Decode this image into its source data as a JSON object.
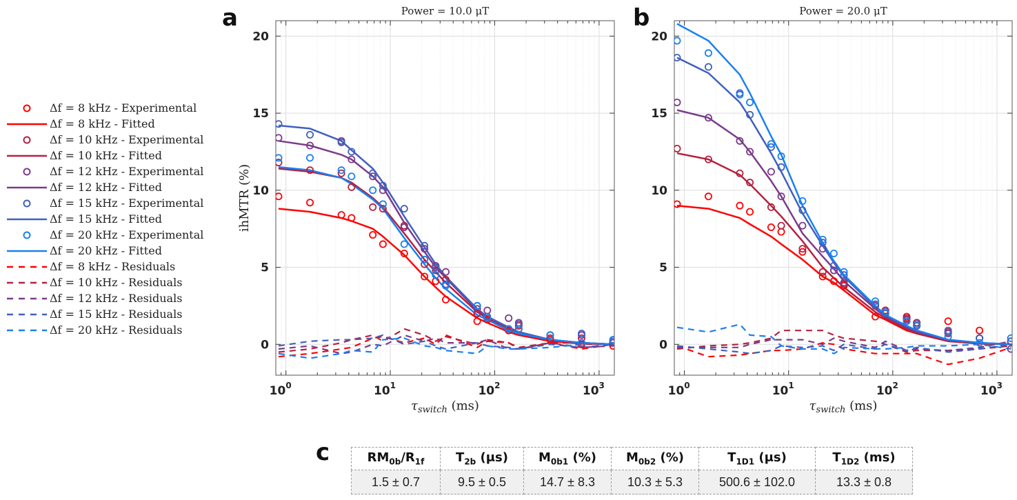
{
  "figure": {
    "panel_letters": {
      "a": "a",
      "b": "b",
      "c": "c"
    }
  },
  "legend": {
    "entries": [
      {
        "label": "Δf = 8 kHz - Experimental",
        "kind": "marker",
        "color": "#ff0000"
      },
      {
        "label": "Δf = 8 kHz - Fitted",
        "kind": "solid",
        "color": "#ff0000"
      },
      {
        "label": "Δf = 10 kHz - Experimental",
        "kind": "marker",
        "color": "#b5213f"
      },
      {
        "label": "Δf = 10 kHz - Fitted",
        "kind": "solid",
        "color": "#b5213f"
      },
      {
        "label": "Δf = 12 kHz - Experimental",
        "kind": "marker",
        "color": "#7b3b8a"
      },
      {
        "label": "Δf = 12 kHz - Fitted",
        "kind": "solid",
        "color": "#7b3b8a"
      },
      {
        "label": "Δf = 15 kHz - Experimental",
        "kind": "marker",
        "color": "#4060c0"
      },
      {
        "label": "Δf = 15 kHz - Fitted",
        "kind": "solid",
        "color": "#4060c0"
      },
      {
        "label": "Δf = 20 kHz - Experimental",
        "kind": "marker",
        "color": "#1a80f0"
      },
      {
        "label": "Δf = 20 kHz - Fitted",
        "kind": "solid",
        "color": "#1a80f0"
      },
      {
        "label": "Δf = 8 kHz - Residuals",
        "kind": "dashed",
        "color": "#ff0000"
      },
      {
        "label": "Δf = 10 kHz - Residuals",
        "kind": "dashed",
        "color": "#b5213f"
      },
      {
        "label": "Δf = 12 kHz - Residuals",
        "kind": "dashed",
        "color": "#7b3b8a"
      },
      {
        "label": "Δf = 15 kHz - Residuals",
        "kind": "dashed",
        "color": "#4060c0"
      },
      {
        "label": "Δf = 20 kHz - Residuals",
        "kind": "dashed",
        "color": "#1a80f0"
      }
    ]
  },
  "chart_data": [
    {
      "type": "scatter",
      "panel": "a",
      "title": "Power = 10.0 μT",
      "xlabel": "τ_switch (ms)",
      "ylabel": "ihMTR (%)",
      "xscale": "log",
      "xlim": [
        0.8,
        1400
      ],
      "ylim": [
        -2,
        21
      ],
      "xticks": [
        1,
        10,
        100,
        1000
      ],
      "xtick_labels": [
        "10^0",
        "10^1",
        "10^2",
        "10^3"
      ],
      "yticks": [
        0,
        5,
        10,
        15,
        20
      ],
      "ytick_labels": [
        "0",
        "5",
        "10",
        "15",
        "20"
      ],
      "grid": true,
      "x": [
        0.85,
        1.7,
        3.4,
        4.25,
        6.8,
        8.5,
        13.6,
        21.25,
        27.2,
        34,
        68,
        85,
        136,
        170,
        340,
        680,
        1360
      ],
      "series": [
        {
          "name": "Δf = 8 kHz",
          "color": "#ff0000",
          "experimental": [
            9.6,
            9.2,
            8.4,
            8.2,
            7.1,
            6.5,
            5.9,
            4.4,
            4.1,
            2.9,
            1.5,
            1.6,
            0.9,
            1.0,
            0.3,
            0.0,
            -0.1
          ],
          "fitted": [
            8.8,
            8.6,
            8.2,
            8.0,
            7.5,
            7.0,
            5.8,
            4.4,
            3.7,
            3.1,
            1.7,
            1.4,
            0.8,
            0.6,
            0.2,
            0.05,
            0.0
          ],
          "residuals": [
            -0.8,
            -0.6,
            -0.3,
            -0.2,
            0.4,
            0.5,
            0.1,
            0.4,
            0.0,
            0.6,
            -0.2,
            0.2,
            0.1,
            -0.3,
            0.1,
            -0.3,
            0.0
          ]
        },
        {
          "name": "Δf = 10 kHz",
          "color": "#b5213f",
          "experimental": [
            11.8,
            11.3,
            11.1,
            10.2,
            8.9,
            8.8,
            7.7,
            5.2,
            4.8,
            4.2,
            2.0,
            1.7,
            1.0,
            1.2,
            0.4,
            0.4,
            0.1
          ],
          "fitted": [
            11.4,
            11.2,
            10.8,
            10.5,
            9.5,
            8.9,
            7.2,
            5.5,
            4.7,
            4.0,
            2.1,
            1.7,
            1.0,
            0.8,
            0.3,
            0.1,
            0.0
          ],
          "residuals": [
            -0.5,
            -0.3,
            0.1,
            0.3,
            0.6,
            0.2,
            1.0,
            0.6,
            0.2,
            0.5,
            0.0,
            0.3,
            0.1,
            -0.2,
            0.1,
            0.1,
            0.0
          ]
        },
        {
          "name": "Δf = 12 kHz",
          "color": "#7b3b8a",
          "experimental": [
            13.4,
            12.9,
            13.2,
            12.0,
            10.9,
            10.0,
            7.6,
            6.2,
            5.1,
            4.7,
            2.3,
            2.2,
            1.7,
            1.4,
            0.6,
            0.6,
            0.1
          ],
          "fitted": [
            13.2,
            12.9,
            12.3,
            12.0,
            10.9,
            10.2,
            7.9,
            6.0,
            5.0,
            4.3,
            2.2,
            1.8,
            1.1,
            0.8,
            0.3,
            0.1,
            0.0
          ],
          "residuals": [
            -0.3,
            -0.1,
            -0.6,
            -0.5,
            0.0,
            -0.1,
            0.6,
            0.2,
            0.4,
            0.1,
            0.1,
            0.3,
            -0.3,
            -0.3,
            0.1,
            -0.2,
            -0.1
          ]
        },
        {
          "name": "Δf = 15 kHz",
          "color": "#4060c0",
          "experimental": [
            14.3,
            13.6,
            13.1,
            12.5,
            11.1,
            10.3,
            8.8,
            6.4,
            5.0,
            3.9,
            2.5,
            1.8,
            1.0,
            1.3,
            0.6,
            0.7,
            0.2
          ],
          "fitted": [
            14.2,
            14.0,
            13.2,
            12.6,
            11.4,
            10.5,
            8.3,
            6.3,
            5.2,
            4.4,
            2.3,
            1.8,
            1.1,
            0.8,
            0.3,
            0.1,
            0.0
          ],
          "residuals": [
            -0.1,
            0.2,
            0.3,
            0.3,
            0.4,
            0.6,
            0.0,
            0.2,
            -0.1,
            -0.3,
            0.1,
            -0.1,
            -0.2,
            -0.3,
            0.0,
            -0.2,
            0.0
          ]
        },
        {
          "name": "Δf = 20 kHz",
          "color": "#1a80f0",
          "experimental": [
            12.1,
            12.1,
            11.3,
            10.9,
            10.0,
            9.1,
            6.5,
            5.5,
            4.5,
            3.8,
            2.5,
            1.7,
            1.0,
            1.0,
            0.6,
            0.1,
            0.3
          ],
          "fitted": [
            11.5,
            11.3,
            10.8,
            10.4,
            9.4,
            8.8,
            6.9,
            5.2,
            4.3,
            3.6,
            1.9,
            1.6,
            0.9,
            0.7,
            0.3,
            0.1,
            0.0
          ],
          "residuals": [
            -0.6,
            -0.9,
            -0.6,
            -0.4,
            -0.5,
            0.3,
            0.4,
            -0.1,
            -0.2,
            -0.4,
            -0.6,
            -0.1,
            -0.3,
            -0.3,
            -0.2,
            0.0,
            0.0
          ]
        }
      ]
    },
    {
      "type": "scatter",
      "panel": "b",
      "title": "Power = 20.0 μT",
      "xlabel": "τ_switch (ms)",
      "ylabel": "",
      "xscale": "log",
      "xlim": [
        0.8,
        1400
      ],
      "ylim": [
        -2,
        21
      ],
      "xticks": [
        1,
        10,
        100,
        1000
      ],
      "xtick_labels": [
        "10^0",
        "10^1",
        "10^2",
        "10^3"
      ],
      "yticks": [
        0,
        5,
        10,
        15,
        20
      ],
      "ytick_labels": [
        "0",
        "5",
        "10",
        "15",
        "20"
      ],
      "grid": true,
      "x": [
        0.85,
        1.7,
        3.4,
        4.25,
        6.8,
        8.5,
        13.6,
        21.25,
        27.2,
        34,
        68,
        85,
        136,
        170,
        340,
        680,
        1360
      ],
      "series": [
        {
          "name": "Δf = 8 kHz",
          "color": "#ff0000",
          "experimental": [
            9.1,
            9.6,
            9.0,
            8.6,
            7.6,
            7.3,
            6.0,
            4.4,
            4.1,
            3.8,
            1.8,
            2.2,
            1.7,
            1.4,
            1.5,
            0.9,
            0.2
          ],
          "fitted": [
            9.0,
            8.8,
            8.2,
            7.8,
            7.0,
            6.5,
            5.5,
            4.4,
            4.0,
            3.5,
            1.9,
            1.6,
            0.9,
            0.7,
            0.2,
            0.05,
            0.0
          ],
          "residuals": [
            -0.1,
            -0.8,
            -0.7,
            -0.6,
            -0.4,
            -0.4,
            -0.3,
            0.1,
            0.0,
            -0.3,
            -0.6,
            -0.6,
            -0.6,
            -0.6,
            -1.3,
            -0.9,
            -0.2
          ]
        },
        {
          "name": "Δf = 10 kHz",
          "color": "#b5213f",
          "experimental": [
            12.7,
            12.0,
            11.1,
            10.5,
            8.9,
            7.7,
            6.2,
            4.7,
            4.8,
            3.9,
            2.6,
            2.2,
            1.8,
            1.4,
            0.8,
            0.4,
            0.2
          ],
          "fitted": [
            12.4,
            12.0,
            11.0,
            10.4,
            9.0,
            8.3,
            6.7,
            5.0,
            4.3,
            3.7,
            2.1,
            1.7,
            1.0,
            0.7,
            0.2,
            0.05,
            0.0
          ],
          "residuals": [
            -0.3,
            -0.1,
            0.0,
            0.1,
            0.4,
            0.9,
            0.9,
            0.9,
            0.6,
            0.4,
            0.2,
            0.0,
            -0.5,
            -0.4,
            -0.4,
            -0.3,
            -0.1
          ]
        },
        {
          "name": "Δf = 12 kHz",
          "color": "#7b3b8a",
          "experimental": [
            15.7,
            14.7,
            13.2,
            12.5,
            11.2,
            9.6,
            7.7,
            6.2,
            4.8,
            4.0,
            2.5,
            2.0,
            1.6,
            1.2,
            0.7,
            0.4,
            -0.3
          ],
          "fitted": [
            15.2,
            14.7,
            13.3,
            12.5,
            10.6,
            9.6,
            7.2,
            5.7,
            4.9,
            4.1,
            2.3,
            1.8,
            1.1,
            0.8,
            0.3,
            0.1,
            0.0
          ],
          "residuals": [
            -0.2,
            -0.2,
            -0.2,
            0.0,
            0.3,
            0.3,
            0.3,
            0.0,
            0.4,
            0.2,
            -0.2,
            0.2,
            -0.4,
            -0.3,
            -0.4,
            -0.2,
            0.2
          ]
        },
        {
          "name": "Δf = 15 kHz",
          "color": "#4060c0",
          "experimental": [
            18.6,
            18.0,
            16.3,
            14.9,
            12.8,
            11.5,
            8.7,
            6.6,
            5.1,
            4.5,
            2.6,
            2.0,
            1.5,
            1.2,
            0.9,
            0.4,
            0.2
          ],
          "fitted": [
            18.6,
            17.6,
            15.7,
            14.7,
            12.4,
            11.2,
            8.5,
            6.4,
            5.3,
            4.4,
            2.4,
            1.9,
            1.2,
            0.9,
            0.3,
            0.1,
            0.0
          ],
          "residuals": [
            -0.1,
            -0.3,
            -0.5,
            -0.6,
            -0.4,
            -0.1,
            -0.2,
            -0.1,
            -0.4,
            0.0,
            -0.3,
            0.0,
            -0.4,
            -0.2,
            -0.5,
            -0.3,
            0.0
          ]
        },
        {
          "name": "Δf = 20 kHz",
          "color": "#1a80f0",
          "experimental": [
            19.7,
            18.9,
            16.2,
            15.7,
            13.0,
            12.2,
            9.3,
            6.8,
            5.9,
            4.7,
            2.8,
            2.1,
            1.5,
            1.3,
            0.5,
            0.1,
            0.4
          ],
          "fitted": [
            20.8,
            19.7,
            17.5,
            16.3,
            13.5,
            12.3,
            9.0,
            6.6,
            5.4,
            4.5,
            2.5,
            1.9,
            1.2,
            0.9,
            0.3,
            0.1,
            0.0
          ],
          "residuals": [
            1.1,
            0.8,
            1.3,
            0.6,
            0.5,
            -0.1,
            -0.3,
            -0.3,
            -0.6,
            -0.2,
            -0.3,
            -0.3,
            -0.2,
            -0.1,
            -0.1,
            0.0,
            -0.3
          ]
        }
      ]
    },
    {
      "type": "table",
      "panel": "c",
      "headers": [
        {
          "main": "RM",
          "sub": "0b",
          "tail": "/R",
          "sub2": "1f",
          "tail2": ""
        },
        {
          "main": "T",
          "sub": "2b",
          "tail": " (μs)",
          "sub2": "",
          "tail2": ""
        },
        {
          "main": "M",
          "sub": "0b1",
          "tail": " (%)",
          "sub2": "",
          "tail2": ""
        },
        {
          "main": "M",
          "sub": "0b2",
          "tail": " (%)",
          "sub2": "",
          "tail2": ""
        },
        {
          "main": "T",
          "sub": "1D1",
          "tail": " (μs)",
          "sub2": "",
          "tail2": ""
        },
        {
          "main": "T",
          "sub": "1D2",
          "tail": " (ms)",
          "sub2": "",
          "tail2": ""
        }
      ],
      "values": [
        "1.5 ± 0.7",
        "9.5 ± 0.5",
        "14.7 ± 8.3",
        "10.3 ± 5.3",
        "500.6 ± 102.0",
        "13.3 ± 0.8"
      ]
    }
  ]
}
